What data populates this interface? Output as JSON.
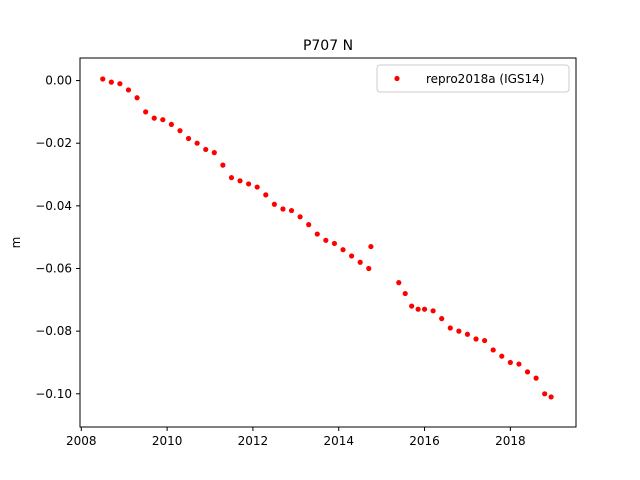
{
  "chart_data": {
    "type": "scatter",
    "title": "P707 N",
    "xlabel": "",
    "ylabel": "m",
    "xlim": [
      2007.97,
      2019.53
    ],
    "ylim": [
      -0.1106,
      0.0072
    ],
    "x_ticks": [
      2008,
      2010,
      2012,
      2014,
      2016,
      2018
    ],
    "y_ticks": [
      0.0,
      -0.02,
      -0.04,
      -0.06,
      -0.08,
      -0.1
    ],
    "x_tick_labels": [
      "2008",
      "2010",
      "2012",
      "2014",
      "2016",
      "2018"
    ],
    "y_tick_labels": [
      "0.00",
      "−0.02",
      "−0.04",
      "−0.06",
      "−0.08",
      "−0.10"
    ],
    "grid": false,
    "legend_position": "upper right",
    "series": [
      {
        "name": "repro2018a (IGS14)",
        "color": "#ff0000",
        "marker": "circle",
        "x": [
          2008.5,
          2008.7,
          2008.9,
          2009.1,
          2009.3,
          2009.5,
          2009.7,
          2009.9,
          2010.1,
          2010.3,
          2010.5,
          2010.7,
          2010.9,
          2011.1,
          2011.3,
          2011.5,
          2011.7,
          2011.9,
          2012.1,
          2012.3,
          2012.5,
          2012.7,
          2012.9,
          2013.1,
          2013.3,
          2013.5,
          2013.7,
          2013.9,
          2014.1,
          2014.3,
          2014.5,
          2014.7,
          2014.75,
          2015.4,
          2015.55,
          2015.7,
          2015.85,
          2016.0,
          2016.2,
          2016.4,
          2016.6,
          2016.8,
          2017.0,
          2017.2,
          2017.4,
          2017.6,
          2017.8,
          2018.0,
          2018.2,
          2018.4,
          2018.6,
          2018.8,
          2018.95
        ],
        "y": [
          0.0005,
          -0.0005,
          -0.001,
          -0.003,
          -0.0055,
          -0.01,
          -0.012,
          -0.0125,
          -0.014,
          -0.016,
          -0.0185,
          -0.02,
          -0.022,
          -0.023,
          -0.027,
          -0.031,
          -0.032,
          -0.033,
          -0.034,
          -0.0365,
          -0.0395,
          -0.041,
          -0.0415,
          -0.0435,
          -0.046,
          -0.049,
          -0.051,
          -0.052,
          -0.054,
          -0.056,
          -0.058,
          -0.06,
          -0.053,
          -0.0645,
          -0.068,
          -0.072,
          -0.073,
          -0.073,
          -0.0735,
          -0.076,
          -0.079,
          -0.08,
          -0.081,
          -0.0825,
          -0.083,
          -0.086,
          -0.088,
          -0.09,
          -0.0905,
          -0.093,
          -0.095,
          -0.1,
          -0.101
        ]
      }
    ]
  }
}
